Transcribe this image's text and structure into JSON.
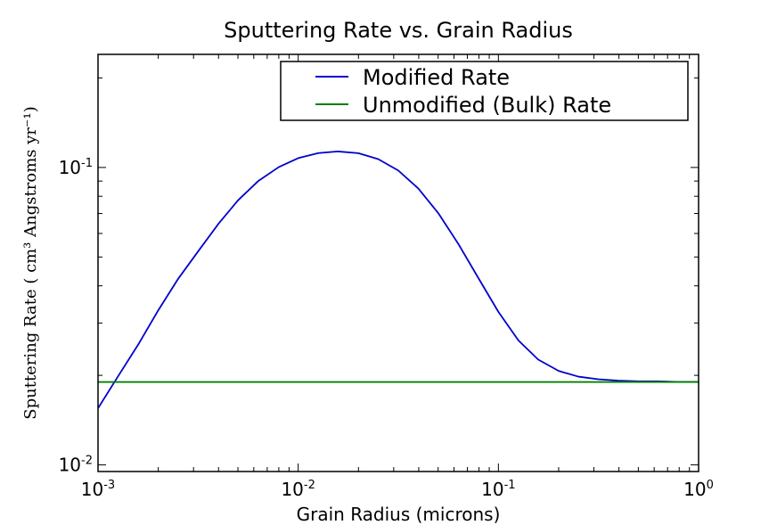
{
  "chart_data": {
    "type": "line",
    "title": "Sputtering Rate vs. Grain Radius",
    "xlabel": "Grain Radius (microns)",
    "ylabel": "Sputtering Rate ( cm³ Angstroms yr⁻¹)",
    "xscale": "log",
    "yscale": "log",
    "xlim": [
      0.001,
      1.0
    ],
    "ylim": [
      0.0095,
      0.24
    ],
    "x_ticks": [
      {
        "value": 0.001,
        "base": "10",
        "exp": "-3"
      },
      {
        "value": 0.01,
        "base": "10",
        "exp": "-2"
      },
      {
        "value": 0.1,
        "base": "10",
        "exp": "-1"
      },
      {
        "value": 1.0,
        "base": "10",
        "exp": "0"
      }
    ],
    "y_ticks": [
      {
        "value": 0.01,
        "base": "10",
        "exp": "-2"
      },
      {
        "value": 0.1,
        "base": "10",
        "exp": "-1"
      }
    ],
    "legend_position": "top-right",
    "series": [
      {
        "name": "Modified Rate",
        "color": "#0000cc",
        "x": [
          0.001,
          0.00125,
          0.0016,
          0.002,
          0.0025,
          0.0032,
          0.004,
          0.005,
          0.0063,
          0.008,
          0.01,
          0.0126,
          0.0158,
          0.02,
          0.0251,
          0.0316,
          0.0398,
          0.0501,
          0.0631,
          0.0794,
          0.1,
          0.126,
          0.158,
          0.2,
          0.251,
          0.316,
          0.398,
          0.501,
          0.631,
          0.794,
          1.0
        ],
        "y": [
          0.0155,
          0.0197,
          0.0256,
          0.0331,
          0.042,
          0.0528,
          0.0647,
          0.0775,
          0.0899,
          0.1003,
          0.1075,
          0.1118,
          0.1132,
          0.1117,
          0.1067,
          0.0977,
          0.085,
          0.0702,
          0.0553,
          0.0425,
          0.0327,
          0.0262,
          0.0226,
          0.0207,
          0.0198,
          0.0194,
          0.0192,
          0.0191,
          0.0191,
          0.019,
          0.019
        ]
      },
      {
        "name": "Unmodified (Bulk) Rate",
        "color": "#007f00",
        "x": [
          0.001,
          1.0
        ],
        "y": [
          0.019,
          0.019
        ]
      }
    ]
  }
}
